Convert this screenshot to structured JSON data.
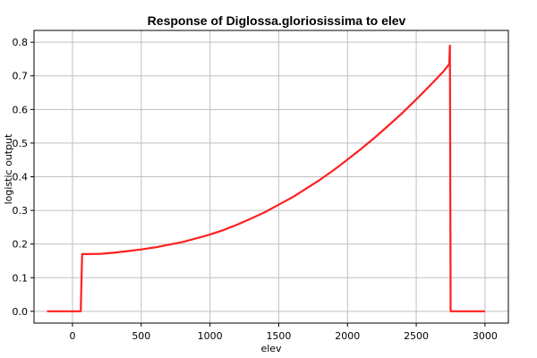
{
  "chart_data": {
    "type": "line",
    "title": "Response of Diglossa.gloriosissima to elev",
    "xlabel": "elev",
    "ylabel": "logistic output",
    "xlim": [
      -280,
      3170
    ],
    "ylim": [
      -0.035,
      0.835
    ],
    "xticks": [
      0,
      500,
      1000,
      1500,
      2000,
      2500,
      3000
    ],
    "yticks": [
      0.0,
      0.1,
      0.2,
      0.3,
      0.4,
      0.5,
      0.6,
      0.7,
      0.8
    ],
    "grid": true,
    "legend": "none",
    "series": [
      {
        "color": "#ff2020",
        "x": [
          -185,
          55,
          60,
          70,
          100,
          200,
          300,
          400,
          500,
          600,
          700,
          800,
          900,
          1000,
          1100,
          1200,
          1300,
          1400,
          1500,
          1600,
          1700,
          1800,
          1900,
          2000,
          2100,
          2200,
          2300,
          2400,
          2500,
          2600,
          2700,
          2740,
          2745,
          2750,
          3000
        ],
        "y": [
          0.0,
          0.0,
          0.0,
          0.17,
          0.17,
          0.171,
          0.174,
          0.179,
          0.184,
          0.19,
          0.198,
          0.206,
          0.217,
          0.228,
          0.242,
          0.258,
          0.276,
          0.295,
          0.317,
          0.339,
          0.365,
          0.391,
          0.42,
          0.451,
          0.483,
          0.517,
          0.553,
          0.59,
          0.63,
          0.671,
          0.714,
          0.735,
          0.79,
          0.0,
          0.0
        ]
      }
    ]
  }
}
